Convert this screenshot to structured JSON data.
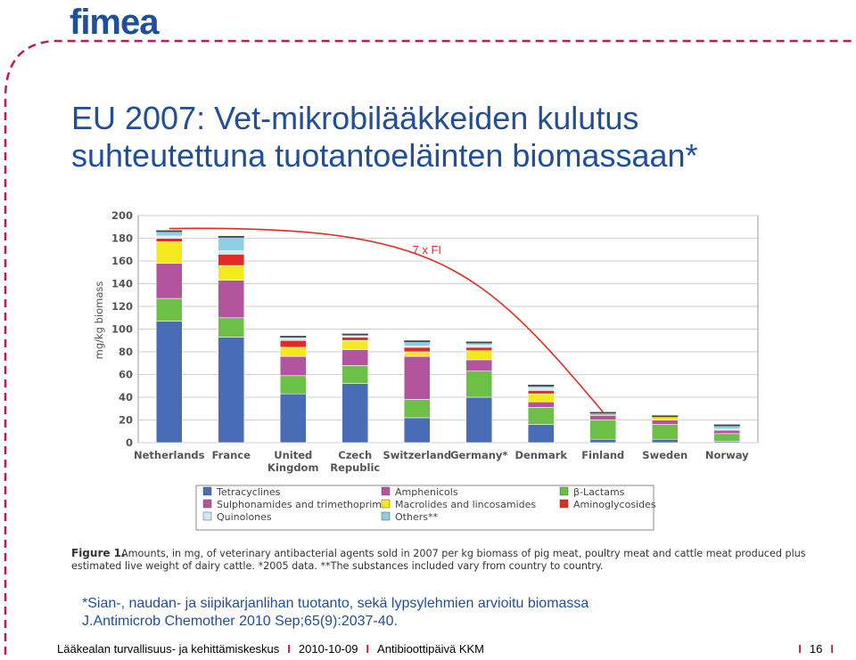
{
  "logo": {
    "text": "fimea",
    "color": "#1f4f9a",
    "accent": "#c2185b"
  },
  "slide": {
    "title_line1": "EU 2007: Vet-mikrobilääkkeiden kulutus",
    "title_line2": "suhteutettuna tuotantoeläinten biomassaan*",
    "note_line1": "*Sian-, naudan- ja siipikarjanlihan tuotanto, sekä lypsylehmien arvioitu biomassa",
    "note_line2": "J.Antimicrob Chemother 2010 Sep;65(9):2037-40."
  },
  "footer": {
    "org": "Lääkealan turvallisuus- ja kehittämiskeskus",
    "date": "2010-10-09",
    "event": "Antibioottipäivä KKM",
    "page": "16",
    "separator": "I"
  },
  "chart_data": {
    "type": "bar",
    "stacked": true,
    "ylabel": "mg/kg biomass",
    "ylim": [
      0,
      200
    ],
    "yticks": [
      0,
      20,
      40,
      60,
      80,
      100,
      120,
      140,
      160,
      180,
      200
    ],
    "categories": [
      "Netherlands",
      "France",
      "United Kingdom",
      "Czech Republic",
      "Switzerland",
      "Germany*",
      "Denmark",
      "Finland",
      "Sweden",
      "Norway"
    ],
    "series": [
      {
        "name": "Tetracyclines",
        "color": "#4a6bb5",
        "values": [
          107,
          93,
          43,
          52,
          22,
          40,
          16,
          3,
          3,
          1
        ]
      },
      {
        "name": "Amphenicols",
        "color": "#b3559e",
        "values": [
          0,
          0,
          0,
          0,
          0,
          0,
          0,
          0,
          0,
          0
        ]
      },
      {
        "name": "β-Lactams",
        "color": "#6cbf47",
        "values": [
          20,
          17,
          16,
          16,
          16,
          23,
          15,
          17,
          13,
          7
        ]
      },
      {
        "name": "Sulphonamides and trimethoprim",
        "color": "#b3559e",
        "values": [
          31,
          33,
          17,
          14,
          38,
          10,
          5,
          4,
          4,
          3
        ]
      },
      {
        "name": "Macrolides and lincosamides",
        "color": "#f2ea1c",
        "values": [
          19,
          13,
          8,
          8,
          4,
          8,
          7,
          0,
          3,
          0
        ]
      },
      {
        "name": "Aminoglycosides",
        "color": "#e32b24",
        "values": [
          3,
          10,
          6,
          3,
          4,
          3,
          3,
          1,
          1,
          0
        ]
      },
      {
        "name": "Quinolones",
        "color": "#cfe9f3",
        "values": [
          2,
          3,
          2,
          1,
          1,
          2,
          2,
          1,
          0,
          1
        ]
      },
      {
        "name": "Others**",
        "color": "#8fcfe3",
        "values": [
          5,
          13,
          2,
          2,
          5,
          3,
          3,
          1,
          0,
          4
        ]
      }
    ],
    "annotation": {
      "text": "7 x FI",
      "color": "#e32b24"
    },
    "legend": "bottom",
    "figure_label": "Figure 1.",
    "caption_line1": "Amounts, in mg, of veterinary antibacterial agents sold in 2007 per kg biomass of pig meat, poultry meat and cattle meat produced plus",
    "caption_line2": "estimated live weight of dairy cattle. *2005 data. **The substances included vary from country to country."
  }
}
